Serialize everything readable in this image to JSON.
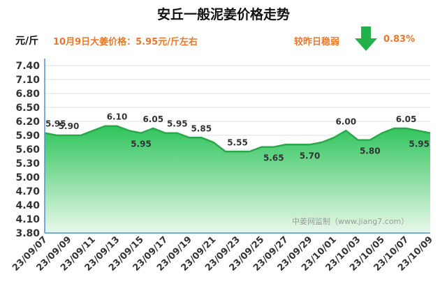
{
  "header": {
    "title": "安丘一般泥姜价格走势",
    "unit": "元/斤",
    "headline": "10月9日大姜价格：5.95元/斤左右",
    "compare_label": "较昨日稳弱",
    "compare_value": "0.83%",
    "trend_icon": "down-arrow-icon",
    "trend_color": "#22b04b"
  },
  "watermark": "中姜网监制（www.jiang7.com）",
  "colors": {
    "line": "#2aa84a",
    "fill_top": "#2fc45c",
    "fill_bottom": "#e8f8ea",
    "grid": "#dde3ea",
    "axis": "#4a90d9",
    "text": "#333333"
  },
  "chart_data": {
    "type": "area",
    "title": "安丘一般泥姜价格走势",
    "ylabel": "元/斤",
    "xlabel": "",
    "ylim": [
      3.8,
      7.4
    ],
    "yticks": [
      "7.40",
      "7.10",
      "6.80",
      "6.50",
      "6.20",
      "5.90",
      "5.60",
      "5.30",
      "5.00",
      "4.70",
      "4.40",
      "4.10",
      "3.80"
    ],
    "xticks": [
      "23/09/07",
      "23/09/09",
      "23/09/11",
      "23/09/13",
      "23/09/15",
      "23/09/17",
      "23/09/19",
      "23/09/21",
      "23/09/23",
      "23/09/25",
      "23/09/27",
      "23/09/29",
      "23/10/01",
      "23/10/03",
      "23/10/05",
      "23/10/07",
      "23/10/09"
    ],
    "x": [
      "23/09/07",
      "23/09/08",
      "23/09/09",
      "23/09/10",
      "23/09/11",
      "23/09/12",
      "23/09/13",
      "23/09/14",
      "23/09/15",
      "23/09/16",
      "23/09/17",
      "23/09/18",
      "23/09/19",
      "23/09/20",
      "23/09/21",
      "23/09/22",
      "23/09/23",
      "23/09/24",
      "23/09/25",
      "23/09/26",
      "23/09/27",
      "23/09/28",
      "23/09/29",
      "23/09/30",
      "23/10/01",
      "23/10/02",
      "23/10/03",
      "23/10/04",
      "23/10/05",
      "23/10/06",
      "23/10/07",
      "23/10/08",
      "23/10/09"
    ],
    "values": [
      5.95,
      5.9,
      5.9,
      5.9,
      6.0,
      6.1,
      6.1,
      6.0,
      5.95,
      6.05,
      5.95,
      5.95,
      5.85,
      5.85,
      5.75,
      5.55,
      5.55,
      5.55,
      5.65,
      5.65,
      5.7,
      5.7,
      5.7,
      5.75,
      5.85,
      6.0,
      5.8,
      5.8,
      5.95,
      6.05,
      6.05,
      6.0,
      5.95
    ],
    "data_labels": [
      {
        "x": "23/09/07",
        "text": "5.95"
      },
      {
        "x": "23/09/09",
        "text": "5.90"
      },
      {
        "x": "23/09/13",
        "text": "6.10"
      },
      {
        "x": "23/09/15",
        "text": "5.95"
      },
      {
        "x": "23/09/16",
        "text": "6.05"
      },
      {
        "x": "23/09/18",
        "text": "5.95"
      },
      {
        "x": "23/09/20",
        "text": "5.85"
      },
      {
        "x": "23/09/23",
        "text": "5.55"
      },
      {
        "x": "23/09/26",
        "text": "5.65"
      },
      {
        "x": "23/09/29",
        "text": "5.70"
      },
      {
        "x": "23/10/02",
        "text": "6.00"
      },
      {
        "x": "23/10/04",
        "text": "5.80"
      },
      {
        "x": "23/10/07",
        "text": "6.05"
      },
      {
        "x": "23/10/09",
        "text": "5.95"
      }
    ],
    "grid": true,
    "legend": "none"
  }
}
